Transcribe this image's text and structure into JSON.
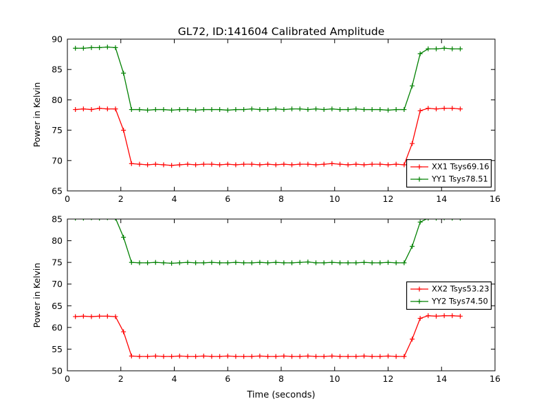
{
  "figure": {
    "background": "#ffffff",
    "axis_color": "#000000"
  },
  "chart_data": [
    {
      "type": "line",
      "title": "GL72, ID:141604 Calibrated Amplitude",
      "xlabel": "",
      "ylabel": "Power in Kelvin",
      "xlim": [
        0,
        16
      ],
      "ylim": [
        65,
        90
      ],
      "xticks": [
        0,
        2,
        4,
        6,
        8,
        10,
        12,
        14,
        16
      ],
      "yticks": [
        65,
        70,
        75,
        80,
        85,
        90
      ],
      "grid": false,
      "legend_position": "lower right",
      "marker": "+",
      "x": [
        0.3,
        0.6,
        0.9,
        1.2,
        1.5,
        1.8,
        2.1,
        2.4,
        2.7,
        3.0,
        3.3,
        3.6,
        3.9,
        4.2,
        4.5,
        4.8,
        5.1,
        5.4,
        5.7,
        6.0,
        6.3,
        6.6,
        6.9,
        7.2,
        7.5,
        7.8,
        8.1,
        8.4,
        8.7,
        9.0,
        9.3,
        9.6,
        9.9,
        10.2,
        10.5,
        10.8,
        11.1,
        11.4,
        11.7,
        12.0,
        12.3,
        12.6,
        12.9,
        13.2,
        13.5,
        13.8,
        14.1,
        14.4,
        14.7
      ],
      "series": [
        {
          "name": "XX1 Tsys69.16",
          "color": "#ff0000",
          "y": [
            78.4,
            78.5,
            78.4,
            78.6,
            78.5,
            78.5,
            75.0,
            69.5,
            69.4,
            69.3,
            69.4,
            69.3,
            69.2,
            69.3,
            69.4,
            69.3,
            69.4,
            69.4,
            69.3,
            69.4,
            69.3,
            69.4,
            69.4,
            69.3,
            69.4,
            69.3,
            69.4,
            69.3,
            69.4,
            69.4,
            69.3,
            69.4,
            69.5,
            69.4,
            69.3,
            69.4,
            69.3,
            69.4,
            69.4,
            69.3,
            69.4,
            69.3,
            72.8,
            78.2,
            78.6,
            78.5,
            78.6,
            78.6,
            78.5
          ]
        },
        {
          "name": "YY1 Tsys78.51",
          "color": "#008000",
          "y": [
            88.5,
            88.5,
            88.6,
            88.6,
            88.7,
            88.6,
            84.4,
            78.4,
            78.4,
            78.3,
            78.4,
            78.4,
            78.3,
            78.4,
            78.4,
            78.3,
            78.4,
            78.4,
            78.4,
            78.3,
            78.4,
            78.4,
            78.5,
            78.4,
            78.4,
            78.5,
            78.4,
            78.5,
            78.5,
            78.4,
            78.5,
            78.4,
            78.5,
            78.4,
            78.4,
            78.5,
            78.4,
            78.4,
            78.4,
            78.3,
            78.4,
            78.4,
            82.3,
            87.6,
            88.4,
            88.4,
            88.5,
            88.4,
            88.4
          ]
        }
      ]
    },
    {
      "type": "line",
      "title": "",
      "xlabel": "Time (seconds)",
      "ylabel": "Power in Kelvin",
      "xlim": [
        0,
        16
      ],
      "ylim": [
        50,
        85
      ],
      "xticks": [
        0,
        2,
        4,
        6,
        8,
        10,
        12,
        14,
        16
      ],
      "yticks": [
        50,
        55,
        60,
        65,
        70,
        75,
        80,
        85
      ],
      "grid": false,
      "legend_position": "center right",
      "marker": "+",
      "x": [
        0.3,
        0.6,
        0.9,
        1.2,
        1.5,
        1.8,
        2.1,
        2.4,
        2.7,
        3.0,
        3.3,
        3.6,
        3.9,
        4.2,
        4.5,
        4.8,
        5.1,
        5.4,
        5.7,
        6.0,
        6.3,
        6.6,
        6.9,
        7.2,
        7.5,
        7.8,
        8.1,
        8.4,
        8.7,
        9.0,
        9.3,
        9.6,
        9.9,
        10.2,
        10.5,
        10.8,
        11.1,
        11.4,
        11.7,
        12.0,
        12.3,
        12.6,
        12.9,
        13.2,
        13.5,
        13.8,
        14.1,
        14.4,
        14.7
      ],
      "series": [
        {
          "name": "XX2 Tsys53.23",
          "color": "#ff0000",
          "y": [
            62.5,
            62.6,
            62.5,
            62.6,
            62.6,
            62.5,
            59.0,
            53.4,
            53.3,
            53.3,
            53.4,
            53.3,
            53.3,
            53.4,
            53.3,
            53.3,
            53.4,
            53.3,
            53.3,
            53.4,
            53.3,
            53.3,
            53.3,
            53.4,
            53.3,
            53.3,
            53.4,
            53.3,
            53.3,
            53.4,
            53.3,
            53.3,
            53.4,
            53.3,
            53.3,
            53.3,
            53.4,
            53.3,
            53.3,
            53.4,
            53.3,
            53.3,
            57.3,
            62.1,
            62.7,
            62.6,
            62.7,
            62.7,
            62.6
          ]
        },
        {
          "name": "YY2 Tsys74.50",
          "color": "#008000",
          "y": [
            85.2,
            85.2,
            85.3,
            85.2,
            85.3,
            85.2,
            80.8,
            75.0,
            74.9,
            74.9,
            75.0,
            74.9,
            74.8,
            74.9,
            75.0,
            74.9,
            74.9,
            75.0,
            74.9,
            74.9,
            75.0,
            74.9,
            74.9,
            75.0,
            74.9,
            75.0,
            74.9,
            74.9,
            75.0,
            75.1,
            74.9,
            74.9,
            75.0,
            74.9,
            74.9,
            74.9,
            75.0,
            74.9,
            74.9,
            75.0,
            74.9,
            74.9,
            78.7,
            84.3,
            85.2,
            85.2,
            85.3,
            85.2,
            85.2
          ]
        }
      ]
    }
  ]
}
